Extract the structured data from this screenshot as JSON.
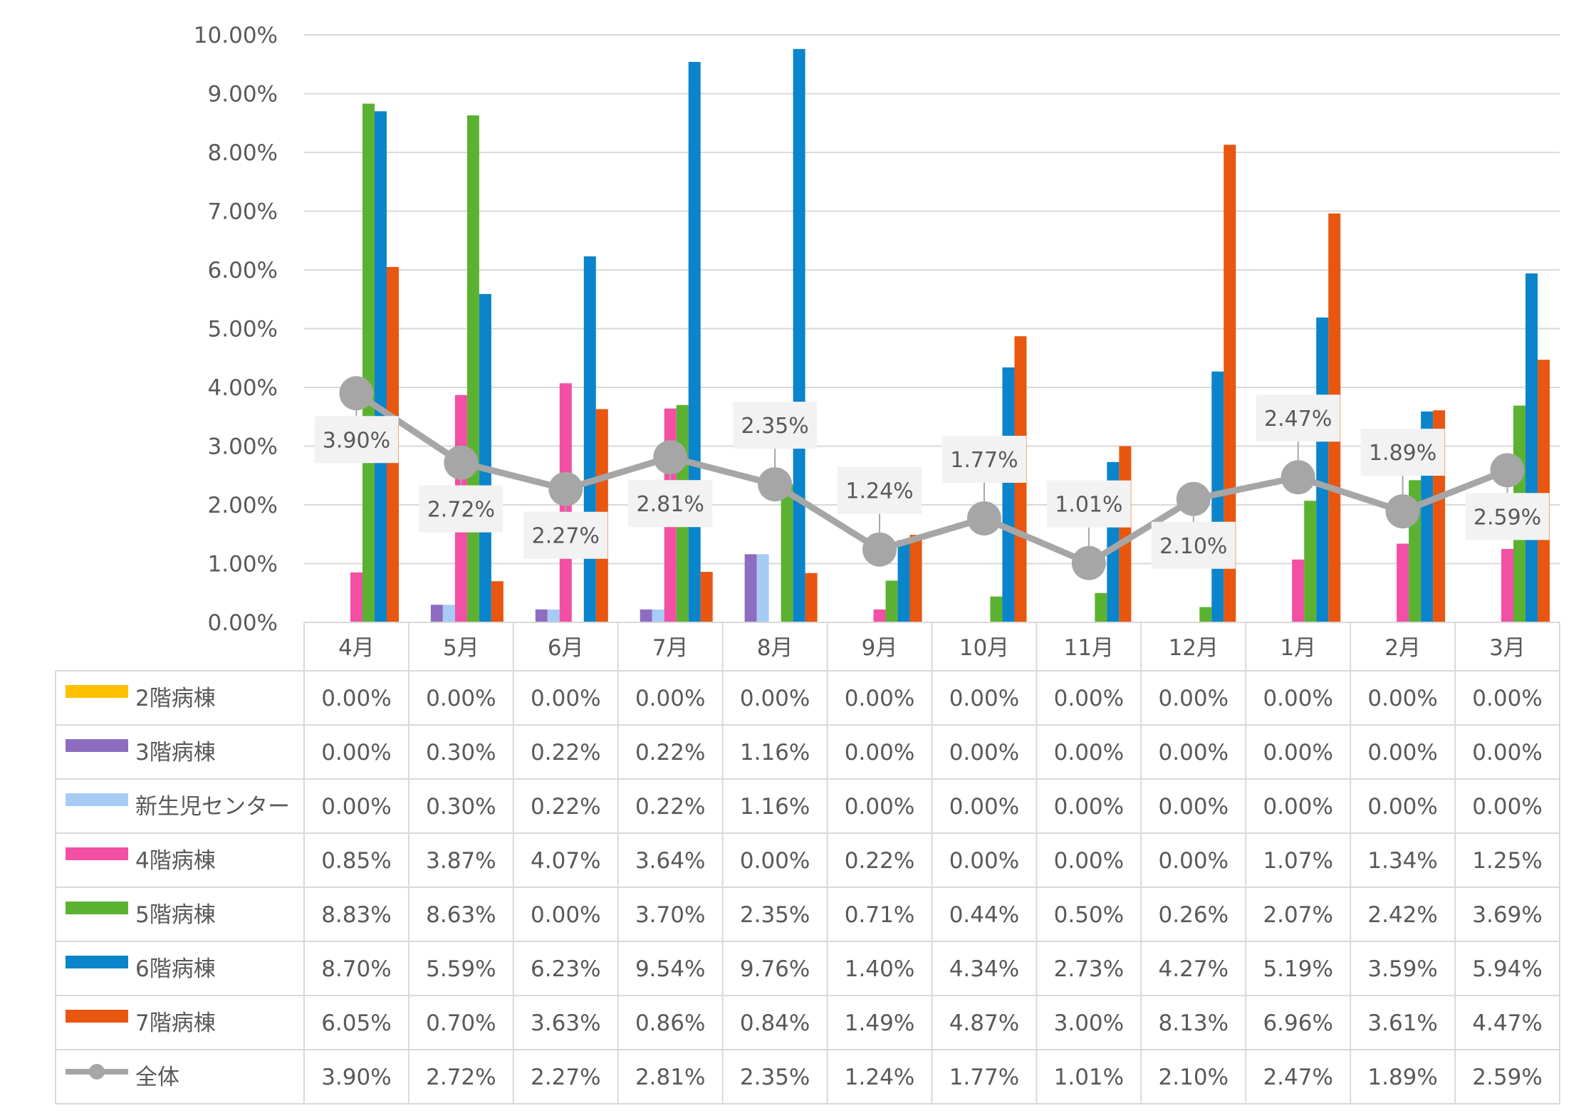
{
  "chart_data": {
    "type": "bar",
    "title": "",
    "xlabel": "",
    "ylabel": "",
    "ylim": [
      0,
      10
    ],
    "y_unit": "%",
    "y_ticks": [
      "0.00%",
      "1.00%",
      "2.00%",
      "3.00%",
      "4.00%",
      "5.00%",
      "6.00%",
      "7.00%",
      "8.00%",
      "9.00%",
      "10.00%"
    ],
    "grid": true,
    "legend": "data-table",
    "categories": [
      "4月",
      "5月",
      "6月",
      "7月",
      "8月",
      "9月",
      "10月",
      "11月",
      "12月",
      "1月",
      "2月",
      "3月"
    ],
    "series": [
      {
        "name": "2階病棟",
        "kind": "bar",
        "color": "#FFC000",
        "values": [
          0.0,
          0.0,
          0.0,
          0.0,
          0.0,
          0.0,
          0.0,
          0.0,
          0.0,
          0.0,
          0.0,
          0.0
        ]
      },
      {
        "name": "3階病棟",
        "kind": "bar",
        "color": "#8E6CC0",
        "values": [
          0.0,
          0.3,
          0.22,
          0.22,
          1.16,
          0.0,
          0.0,
          0.0,
          0.0,
          0.0,
          0.0,
          0.0
        ]
      },
      {
        "name": "新生児センター",
        "kind": "bar",
        "color": "#A6CCF5",
        "values": [
          0.0,
          0.3,
          0.22,
          0.22,
          1.16,
          0.0,
          0.0,
          0.0,
          0.0,
          0.0,
          0.0,
          0.0
        ]
      },
      {
        "name": "4階病棟",
        "kind": "bar",
        "color": "#F24FA5",
        "values": [
          0.85,
          3.87,
          4.07,
          3.64,
          0.0,
          0.22,
          0.0,
          0.0,
          0.0,
          1.07,
          1.34,
          1.25
        ]
      },
      {
        "name": "5階病棟",
        "kind": "bar",
        "color": "#5BB230",
        "values": [
          8.83,
          8.63,
          0.0,
          3.7,
          2.35,
          0.71,
          0.44,
          0.5,
          0.26,
          2.07,
          2.42,
          3.69
        ]
      },
      {
        "name": "6階病棟",
        "kind": "bar",
        "color": "#0A84CB",
        "values": [
          8.7,
          5.59,
          6.23,
          9.54,
          9.76,
          1.4,
          4.34,
          2.73,
          4.27,
          5.19,
          3.59,
          5.94
        ]
      },
      {
        "name": "7階病棟",
        "kind": "bar",
        "color": "#E8560F",
        "values": [
          6.05,
          0.7,
          3.63,
          0.86,
          0.84,
          1.49,
          4.87,
          3.0,
          8.13,
          6.96,
          3.61,
          4.47
        ]
      },
      {
        "name": "全体",
        "kind": "line",
        "color": "#A6A6A6",
        "values": [
          3.9,
          2.72,
          2.27,
          2.81,
          2.35,
          1.24,
          1.77,
          1.01,
          2.1,
          2.47,
          1.89,
          2.59
        ]
      }
    ],
    "line_label_position": [
      "below",
      "below",
      "below",
      "below",
      "above",
      "above",
      "above",
      "above",
      "below",
      "above",
      "above",
      "below"
    ]
  }
}
